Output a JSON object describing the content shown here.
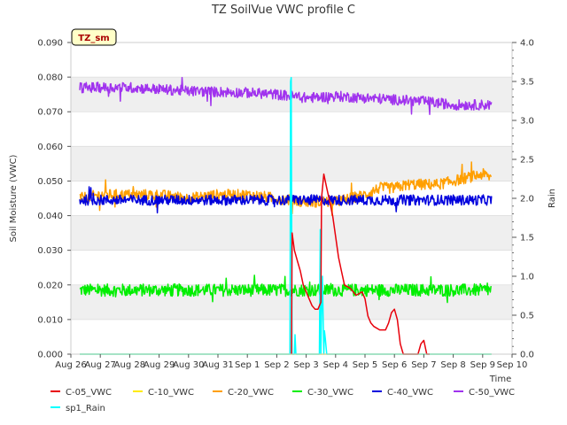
{
  "chart_data": {
    "type": "line",
    "title": "TZ SoilVue VWC profile C",
    "badge": "TZ_sm",
    "xlabel": "Time",
    "ylabel": "Soil Moisture (VWC)",
    "y2label": "Rain",
    "xlim": [
      0,
      15
    ],
    "ylim": [
      0,
      0.09
    ],
    "y2lim": [
      0,
      4.0
    ],
    "grid": true,
    "legend_position": "bottom",
    "xticks": [
      {
        "v": 0,
        "label": "Aug 26"
      },
      {
        "v": 1,
        "label": "Aug 27"
      },
      {
        "v": 2,
        "label": "Aug 28"
      },
      {
        "v": 3,
        "label": "Aug 29"
      },
      {
        "v": 4,
        "label": "Aug 30"
      },
      {
        "v": 5,
        "label": "Aug 31"
      },
      {
        "v": 6,
        "label": "Sep 1"
      },
      {
        "v": 7,
        "label": "Sep 2"
      },
      {
        "v": 8,
        "label": "Sep 3"
      },
      {
        "v": 9,
        "label": "Sep 4"
      },
      {
        "v": 10,
        "label": "Sep 5"
      },
      {
        "v": 11,
        "label": "Sep 6"
      },
      {
        "v": 12,
        "label": "Sep 7"
      },
      {
        "v": 13,
        "label": "Sep 8"
      },
      {
        "v": 14,
        "label": "Sep 9"
      },
      {
        "v": 15,
        "label": "Sep 10"
      }
    ],
    "yticks": [
      "0.000",
      "0.010",
      "0.020",
      "0.030",
      "0.040",
      "0.050",
      "0.060",
      "0.070",
      "0.080",
      "0.090"
    ],
    "y2ticks": [
      "0.0",
      "0.5",
      "1.0",
      "1.5",
      "2.0",
      "2.5",
      "3.0",
      "3.5",
      "4.0"
    ],
    "series": [
      {
        "name": "C-05_VWC",
        "color": "#e8000b",
        "axis": "left",
        "x": [
          7.5,
          7.52,
          7.6,
          7.7,
          7.8,
          7.9,
          8.0,
          8.1,
          8.2,
          8.3,
          8.4,
          8.5,
          8.52,
          8.6,
          8.7,
          8.8,
          8.9,
          9.0,
          9.1,
          9.2,
          9.3,
          9.5,
          9.7,
          9.9,
          10.0,
          10.1,
          10.2,
          10.3,
          10.5,
          10.7,
          10.8,
          10.9,
          11.0,
          11.1,
          11.2,
          11.3,
          11.4,
          11.6,
          11.8,
          11.9,
          12.0,
          12.1,
          12.2
        ],
        "y": [
          0.0,
          0.035,
          0.03,
          0.027,
          0.024,
          0.02,
          0.018,
          0.016,
          0.014,
          0.013,
          0.013,
          0.015,
          0.045,
          0.052,
          0.048,
          0.044,
          0.04,
          0.034,
          0.028,
          0.024,
          0.02,
          0.019,
          0.017,
          0.018,
          0.016,
          0.011,
          0.009,
          0.008,
          0.007,
          0.007,
          0.009,
          0.012,
          0.013,
          0.01,
          0.003,
          0.0,
          0.0,
          0.0,
          0.0,
          0.003,
          0.004,
          0.0,
          0.0
        ]
      },
      {
        "name": "C-10_VWC",
        "color": "#ffeb00",
        "axis": "left",
        "x": [
          0.3,
          14.3
        ],
        "y": [
          0.0,
          0.0
        ]
      },
      {
        "name": "C-20_VWC",
        "color": "#ff9f00",
        "axis": "left",
        "x": [
          0.3,
          1,
          2,
          3,
          4,
          5,
          6,
          7,
          8,
          9,
          10,
          10.5,
          11,
          11.5,
          12,
          12.5,
          13,
          13.5,
          14,
          14.3
        ],
        "y": [
          0.045,
          0.046,
          0.046,
          0.046,
          0.045,
          0.046,
          0.046,
          0.045,
          0.044,
          0.044,
          0.046,
          0.048,
          0.048,
          0.049,
          0.049,
          0.049,
          0.05,
          0.051,
          0.052,
          0.051
        ],
        "noise": 0.0016
      },
      {
        "name": "C-30_VWC",
        "color": "#00ee00",
        "axis": "left",
        "x": [
          0.3,
          14.3
        ],
        "y": [
          0.0185,
          0.0185
        ],
        "noise": 0.0018
      },
      {
        "name": "C-40_VWC",
        "color": "#0000dd",
        "axis": "left",
        "x": [
          0.3,
          14.3
        ],
        "y": [
          0.0445,
          0.0445
        ],
        "noise": 0.0015
      },
      {
        "name": "C-50_VWC",
        "color": "#a033ee",
        "axis": "left",
        "x": [
          0.3,
          2,
          4,
          6,
          7,
          8,
          9,
          10,
          11,
          12,
          13,
          14,
          14.3
        ],
        "y": [
          0.077,
          0.077,
          0.076,
          0.0755,
          0.075,
          0.074,
          0.0745,
          0.074,
          0.0735,
          0.073,
          0.072,
          0.072,
          0.072
        ],
        "noise": 0.0015
      },
      {
        "name": "sp1_Rain",
        "color": "#00ffff",
        "axis": "right",
        "x": [
          0.3,
          7.45,
          7.47,
          7.49,
          7.52,
          7.55,
          7.6,
          7.62,
          7.65,
          7.7,
          7.8,
          8.3,
          8.45,
          8.48,
          8.5,
          8.52,
          8.55,
          8.6,
          8.62,
          8.65,
          8.7,
          8.75,
          8.8,
          14.3
        ],
        "y": [
          0.0,
          0.0,
          3.5,
          3.55,
          0.0,
          0.0,
          0.0,
          0.25,
          0.0,
          0.0,
          0.0,
          0.0,
          0.0,
          1.6,
          0.0,
          0.5,
          1.0,
          0.0,
          0.3,
          0.2,
          0.0,
          0.0,
          0.0,
          0.0
        ]
      }
    ]
  }
}
